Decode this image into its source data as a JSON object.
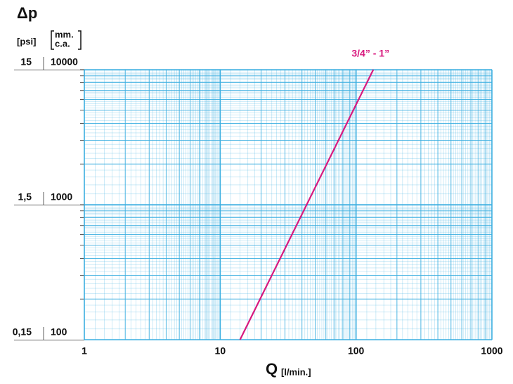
{
  "chart_data": {
    "type": "line",
    "title": "Δp",
    "y_label_lines": [
      "mm.",
      "c.a."
    ],
    "y2_label": "[psi]",
    "x_label": "Q",
    "x_unit": "[l/min.]",
    "x_log": true,
    "y_log": true,
    "grid": true,
    "minor_grid": true,
    "grid_color": "#3aaee0",
    "xlim": [
      1,
      1000
    ],
    "xticks": [
      1,
      10,
      100,
      1000
    ],
    "ylim": [
      100,
      10000
    ],
    "yticks": [
      100,
      1000,
      10000
    ],
    "y2lim": [
      0.15,
      15
    ],
    "y2ticks": [
      {
        "value": 0.15,
        "label": "0,15"
      },
      {
        "value": 1.5,
        "label": "1,5"
      },
      15
    ],
    "x": [
      14,
      134
    ],
    "series": [
      {
        "name": "3/4” - 1”",
        "color": "#d8197e",
        "values": [
          100,
          10000
        ]
      }
    ]
  }
}
